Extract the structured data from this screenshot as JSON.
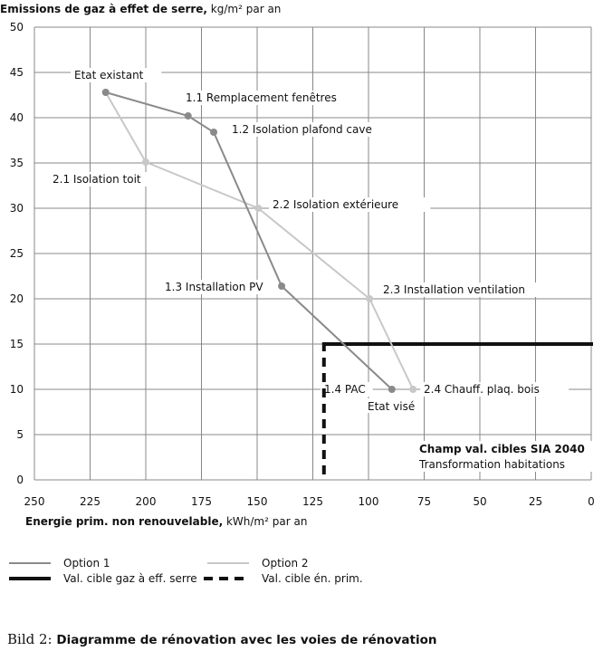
{
  "chart_data": {
    "type": "line",
    "ylabel_bold": "Emissions de gaz à effet de serre,",
    "ylabel_unit": " kg/m² par an",
    "xlabel_bold": "Energie prim. non renouvelable,",
    "xlabel_unit": " kWh/m² par an",
    "xlim": [
      250,
      0
    ],
    "ylim": [
      0,
      50
    ],
    "x_reversed": true,
    "grid": true,
    "xticks": [
      250,
      225,
      200,
      175,
      150,
      125,
      100,
      75,
      50,
      25,
      0
    ],
    "yticks": [
      0,
      5,
      10,
      15,
      20,
      25,
      30,
      35,
      40,
      45,
      50
    ],
    "series": [
      {
        "name": "Option 1",
        "color": "#8a8a8a",
        "points": [
          {
            "x": 218,
            "y": 42.8,
            "label": "Etat existant"
          },
          {
            "x": 181,
            "y": 40.2,
            "label": "1.1 Remplacement fenêtres"
          },
          {
            "x": 169.5,
            "y": 38.4,
            "label": "1.2 Isolation plafond cave"
          },
          {
            "x": 139,
            "y": 21.4,
            "label": "1.3 Installation PV"
          },
          {
            "x": 89.5,
            "y": 10,
            "label": "1.4 PAC"
          }
        ]
      },
      {
        "name": "Option 2",
        "color": "#c8c8c8",
        "points": [
          {
            "x": 218,
            "y": 42.8,
            "label": ""
          },
          {
            "x": 200,
            "y": 35.1,
            "label": "2.1 Isolation toit"
          },
          {
            "x": 149.5,
            "y": 30,
            "label": "2.2 Isolation extérieure"
          },
          {
            "x": 99.5,
            "y": 20,
            "label": "2.3 Installation ventilation"
          },
          {
            "x": 80,
            "y": 10,
            "label": "2.4 Chauff. plaq. bois"
          }
        ]
      }
    ],
    "targets": [
      {
        "name": "Val. cible gaz à eff. serre",
        "axis": "y",
        "value": 15,
        "style": "solid",
        "color": "#111111"
      },
      {
        "name": "Val. cible én. prim.",
        "axis": "x",
        "value": 120,
        "style": "dashed",
        "color": "#111111"
      }
    ],
    "end_label": "Etat visé",
    "zone_title": "Champ val. cibles SIA 2040",
    "zone_subtitle": "Transformation habitations",
    "legend_placement": "bottom"
  },
  "caption": {
    "prefix": "Bild 2:",
    "text": "Diagramme de rénovation avec les voies de rénovation"
  }
}
